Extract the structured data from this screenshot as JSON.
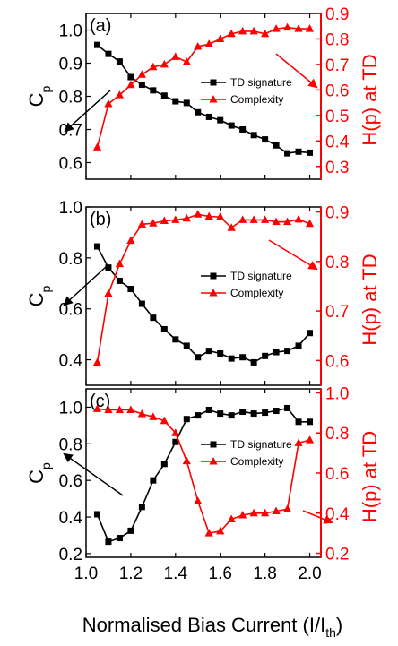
{
  "chart_data": {
    "type": "line",
    "xlabel": "Normalised Bias Current (I/I",
    "xlabel_sub": "th",
    "xlabel_close": ")",
    "xlim": [
      1.0,
      2.05
    ],
    "xticks": [
      "1.0",
      "1.2",
      "1.4",
      "1.6",
      "1.8",
      "2.0"
    ],
    "xtick_values": [
      1.0,
      1.2,
      1.4,
      1.6,
      1.8,
      2.0
    ],
    "left_color": "#000000",
    "right_color": "#ff0000",
    "panels": [
      {
        "label": "(a)",
        "ylabel_left": "C",
        "ylabel_left_sub": "p",
        "ylabel_right": "H(p) at TD",
        "ylim_left": [
          0.55,
          1.05
        ],
        "ylim_right": [
          0.25,
          0.9
        ],
        "yticks_left": [
          "0.6",
          "0.7",
          "0.8",
          "0.9",
          "1.0"
        ],
        "yticks_left_values": [
          0.6,
          0.7,
          0.8,
          0.9,
          1.0
        ],
        "yticks_right": [
          "0.3",
          "0.4",
          "0.5",
          "0.6",
          "0.7",
          "0.8",
          "0.9"
        ],
        "yticks_right_values": [
          0.3,
          0.4,
          0.5,
          0.6,
          0.7,
          0.8,
          0.9
        ],
        "legend": [
          "TD signature",
          "Complexity"
        ],
        "legend_pos": "right-middle",
        "series": [
          {
            "name": "TD signature",
            "axis": "left",
            "marker": "square",
            "x": [
              1.05,
              1.1,
              1.15,
              1.2,
              1.25,
              1.3,
              1.35,
              1.4,
              1.45,
              1.5,
              1.55,
              1.6,
              1.65,
              1.7,
              1.75,
              1.8,
              1.85,
              1.9,
              1.95,
              2.0
            ],
            "y": [
              0.955,
              0.928,
              0.905,
              0.858,
              0.835,
              0.818,
              0.802,
              0.785,
              0.78,
              0.752,
              0.738,
              0.728,
              0.712,
              0.7,
              0.683,
              0.67,
              0.652,
              0.628,
              0.633,
              0.63
            ]
          },
          {
            "name": "Complexity",
            "axis": "right",
            "marker": "triangle",
            "x": [
              1.05,
              1.1,
              1.15,
              1.2,
              1.25,
              1.3,
              1.35,
              1.4,
              1.45,
              1.5,
              1.55,
              1.6,
              1.65,
              1.7,
              1.75,
              1.8,
              1.85,
              1.9,
              1.95,
              2.0
            ],
            "y": [
              0.375,
              0.545,
              0.58,
              0.62,
              0.66,
              0.69,
              0.7,
              0.73,
              0.71,
              0.77,
              0.78,
              0.8,
              0.82,
              0.83,
              0.83,
              0.82,
              0.84,
              0.845,
              0.84,
              0.84
            ]
          }
        ]
      },
      {
        "label": "(b)",
        "ylabel_left": "C",
        "ylabel_left_sub": "p",
        "ylabel_right": "H(p) at TD",
        "ylim_left": [
          0.3,
          1.0
        ],
        "ylim_right": [
          0.55,
          0.91
        ],
        "yticks_left": [
          "0.4",
          "0.6",
          "0.8",
          "1.0"
        ],
        "yticks_left_values": [
          0.4,
          0.6,
          0.8,
          1.0
        ],
        "yticks_right": [
          "0.6",
          "0.7",
          "0.8",
          "0.9"
        ],
        "yticks_right_values": [
          0.6,
          0.7,
          0.8,
          0.9
        ],
        "legend": [
          "TD signature",
          "Complexity"
        ],
        "legend_pos": "right-middle",
        "series": [
          {
            "name": "TD signature",
            "axis": "left",
            "marker": "square",
            "x": [
              1.05,
              1.1,
              1.15,
              1.2,
              1.25,
              1.3,
              1.35,
              1.4,
              1.45,
              1.5,
              1.55,
              1.6,
              1.65,
              1.7,
              1.75,
              1.8,
              1.85,
              1.9,
              1.95,
              2.0
            ],
            "y": [
              0.845,
              0.762,
              0.71,
              0.678,
              0.62,
              0.565,
              0.52,
              0.48,
              0.455,
              0.41,
              0.435,
              0.425,
              0.405,
              0.41,
              0.39,
              0.415,
              0.43,
              0.435,
              0.455,
              0.505
            ]
          },
          {
            "name": "Complexity",
            "axis": "right",
            "marker": "triangle",
            "x": [
              1.05,
              1.1,
              1.15,
              1.2,
              1.25,
              1.3,
              1.35,
              1.4,
              1.45,
              1.5,
              1.55,
              1.6,
              1.65,
              1.7,
              1.75,
              1.8,
              1.85,
              1.9,
              1.95,
              2.0
            ],
            "y": [
              0.596,
              0.735,
              0.795,
              0.842,
              0.875,
              0.877,
              0.882,
              0.884,
              0.887,
              0.895,
              0.891,
              0.89,
              0.868,
              0.884,
              0.884,
              0.884,
              0.88,
              0.88,
              0.885,
              0.876
            ]
          }
        ]
      },
      {
        "label": "(c)",
        "ylabel_left": "C",
        "ylabel_left_sub": "p",
        "ylabel_right": "H(p) at TD",
        "ylim_left": [
          0.18,
          1.1
        ],
        "ylim_right": [
          0.18,
          1.02
        ],
        "yticks_left": [
          "0.2",
          "0.4",
          "0.6",
          "0.8",
          "1.0"
        ],
        "yticks_left_values": [
          0.2,
          0.4,
          0.6,
          0.8,
          1.0
        ],
        "yticks_right": [
          "0.2",
          "0.4",
          "0.6",
          "0.8",
          "1.0"
        ],
        "yticks_right_values": [
          0.2,
          0.4,
          0.6,
          0.8,
          1.0
        ],
        "legend": [
          "TD signature",
          "Complexity"
        ],
        "legend_pos": "right-top",
        "series": [
          {
            "name": "TD signature",
            "axis": "left",
            "marker": "square",
            "x": [
              1.05,
              1.1,
              1.15,
              1.2,
              1.25,
              1.3,
              1.35,
              1.4,
              1.45,
              1.5,
              1.55,
              1.6,
              1.65,
              1.7,
              1.75,
              1.8,
              1.85,
              1.9,
              1.95,
              2.0
            ],
            "y": [
              0.415,
              0.265,
              0.285,
              0.325,
              0.455,
              0.6,
              0.69,
              0.81,
              0.935,
              0.955,
              0.985,
              0.965,
              0.955,
              0.975,
              0.965,
              0.97,
              0.98,
              0.995,
              0.92,
              0.92
            ]
          },
          {
            "name": "Complexity",
            "axis": "right",
            "marker": "triangle",
            "x": [
              1.05,
              1.1,
              1.15,
              1.2,
              1.25,
              1.3,
              1.35,
              1.4,
              1.45,
              1.5,
              1.55,
              1.6,
              1.65,
              1.7,
              1.75,
              1.8,
              1.85,
              1.9,
              1.95,
              2.0
            ],
            "y": [
              0.92,
              0.915,
              0.915,
              0.915,
              0.895,
              0.88,
              0.86,
              0.8,
              0.66,
              0.46,
              0.3,
              0.31,
              0.37,
              0.39,
              0.4,
              0.4,
              0.41,
              0.42,
              0.75,
              0.765
            ]
          }
        ]
      }
    ]
  }
}
